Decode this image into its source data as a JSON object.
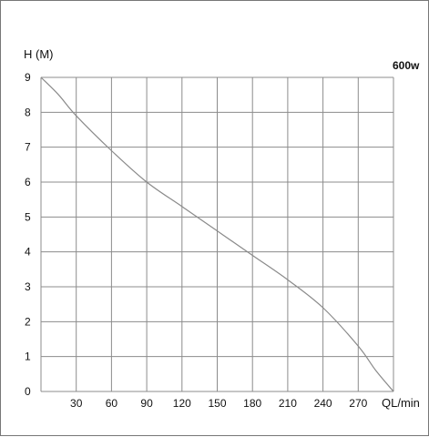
{
  "chart_data": {
    "type": "line",
    "title": "600w",
    "xlabel": "QL/min",
    "ylabel": "H (M)",
    "x_ticks": [
      30,
      60,
      90,
      120,
      150,
      180,
      210,
      240,
      270
    ],
    "y_ticks": [
      0,
      1,
      2,
      3,
      4,
      5,
      6,
      7,
      8,
      9
    ],
    "xlim": [
      0,
      300
    ],
    "ylim": [
      0,
      9
    ],
    "grid": true,
    "series": [
      {
        "points": [
          {
            "x": 0,
            "y": 9
          },
          {
            "x": 15,
            "y": 8.5
          },
          {
            "x": 30,
            "y": 7.9
          },
          {
            "x": 60,
            "y": 6.9
          },
          {
            "x": 90,
            "y": 6.0
          },
          {
            "x": 120,
            "y": 5.3
          },
          {
            "x": 150,
            "y": 4.6
          },
          {
            "x": 180,
            "y": 3.9
          },
          {
            "x": 210,
            "y": 3.2
          },
          {
            "x": 240,
            "y": 2.4
          },
          {
            "x": 270,
            "y": 1.3
          },
          {
            "x": 285,
            "y": 0.6
          },
          {
            "x": 300,
            "y": 0
          }
        ]
      }
    ],
    "colors": {
      "grid": "#8c8c8c",
      "curve": "#8a8a8a",
      "text": "#111111",
      "frame": "#777777"
    }
  }
}
